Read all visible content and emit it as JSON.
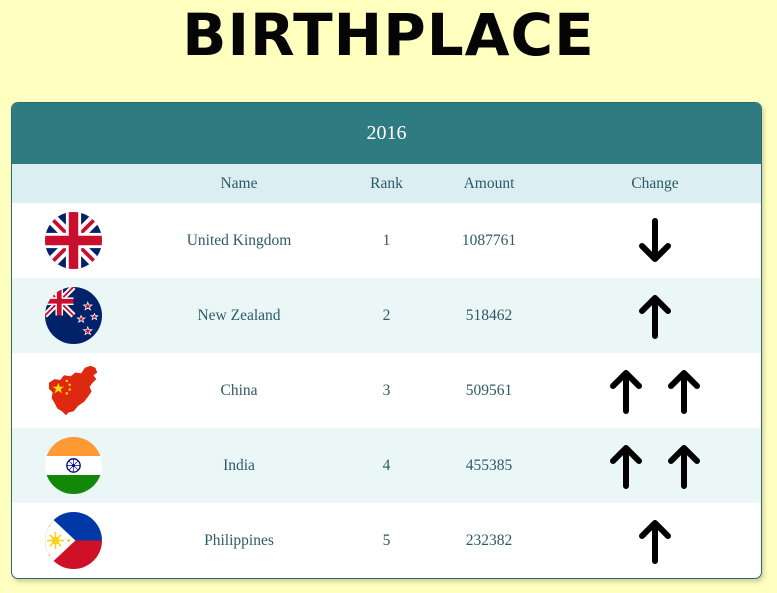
{
  "page": {
    "title": "BIRTHPLACE"
  },
  "table": {
    "year": "2016",
    "headers": {
      "name": "Name",
      "rank": "Rank",
      "amount": "Amount",
      "change": "Change"
    },
    "rows": [
      {
        "flag": "uk-flag-icon",
        "name": "United Kingdom",
        "rank": "1",
        "amount": "1087761",
        "change": [
          "down"
        ]
      },
      {
        "flag": "nz-flag-icon",
        "name": "New Zealand",
        "rank": "2",
        "amount": "518462",
        "change": [
          "up"
        ]
      },
      {
        "flag": "china-map-flag-icon",
        "name": "China",
        "rank": "3",
        "amount": "509561",
        "change": [
          "up",
          "up"
        ]
      },
      {
        "flag": "india-flag-icon",
        "name": "India",
        "rank": "4",
        "amount": "455385",
        "change": [
          "up",
          "up"
        ]
      },
      {
        "flag": "philippines-flag-icon",
        "name": "Philippines",
        "rank": "5",
        "amount": "232382",
        "change": [
          "up"
        ]
      }
    ]
  },
  "colors": {
    "background": "#ffffc0",
    "header_bar": "#2f7b82",
    "subheader": "#dbeff2",
    "alt_row": "#ebf6f7",
    "text": "#2d5a66"
  }
}
